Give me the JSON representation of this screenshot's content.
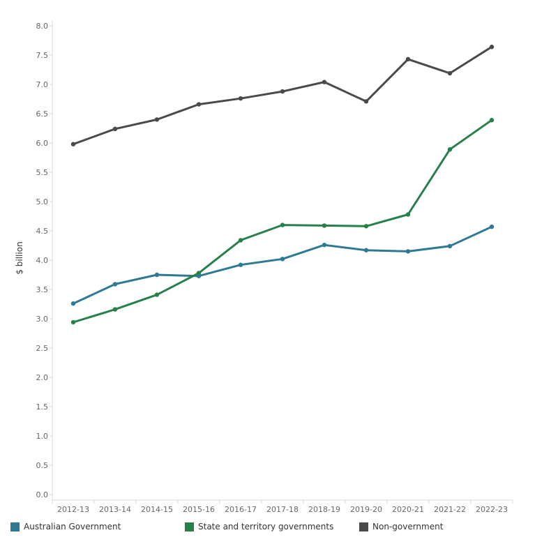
{
  "chart_data": {
    "type": "line",
    "title": "",
    "xlabel": "",
    "ylabel": "$ billion",
    "ylim": [
      0,
      8
    ],
    "yticks": [
      "0.0",
      "0.5",
      "1.0",
      "1.5",
      "2.0",
      "2.5",
      "3.0",
      "3.5",
      "4.0",
      "4.5",
      "5.0",
      "5.5",
      "6.0",
      "6.5",
      "7.0",
      "7.5",
      "8.0"
    ],
    "categories": [
      "2012-13",
      "2013-14",
      "2014-15",
      "2015-16",
      "2016-17",
      "2017-18",
      "2018-19",
      "2019-20",
      "2020-21",
      "2021-22",
      "2022-23"
    ],
    "grid": false,
    "legend_position": "bottom",
    "series": [
      {
        "name": "Australian Government",
        "color": "#2e7a94",
        "values": [
          3.26,
          3.59,
          3.75,
          3.73,
          3.92,
          4.02,
          4.26,
          4.17,
          4.15,
          4.24,
          4.57
        ]
      },
      {
        "name": "State and territory governments",
        "color": "#27804a",
        "values": [
          2.94,
          3.16,
          3.41,
          3.78,
          4.34,
          4.6,
          4.59,
          4.58,
          4.78,
          5.89,
          6.39
        ]
      },
      {
        "name": "Non-government",
        "color": "#4a4a4a",
        "values": [
          5.98,
          6.24,
          6.4,
          6.66,
          6.76,
          6.88,
          7.04,
          6.71,
          7.43,
          7.19,
          7.64
        ]
      }
    ]
  }
}
